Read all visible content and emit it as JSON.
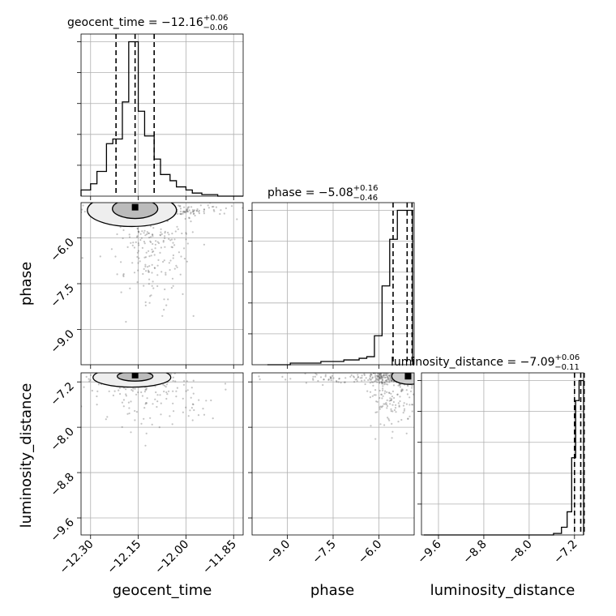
{
  "chart_data": {
    "type": "corner",
    "parameters": [
      "geocent_time",
      "phase",
      "luminosity_distance"
    ],
    "titles": [
      {
        "param": "geocent_time",
        "median": "−12.16",
        "plus": "+0.06",
        "minus": "−0.06"
      },
      {
        "param": "phase",
        "median": "−5.08",
        "plus": "+0.16",
        "minus": "−0.46"
      },
      {
        "param": "luminosity_distance",
        "median": "−7.09",
        "plus": "+0.06",
        "minus": "−0.11"
      }
    ],
    "ranges": {
      "geocent_time": [
        -12.33,
        -11.82
      ],
      "phase": [
        -10.15,
        -4.85
      ],
      "luminosity_distance": [
        -9.9,
        -7.04
      ]
    },
    "ticks": {
      "geocent_time": {
        "values": [
          -12.3,
          -12.15,
          -12.0,
          -11.85
        ],
        "labels": [
          "−12.30",
          "−12.15",
          "−12.00",
          "−11.85"
        ]
      },
      "phase": {
        "values": [
          -9.0,
          -7.5,
          -6.0
        ],
        "labels": [
          "−9.0",
          "−7.5",
          "−6.0"
        ]
      },
      "luminosity_distance": {
        "values": [
          -9.6,
          -8.8,
          -8.0,
          -7.2
        ],
        "labels": [
          "−9.6",
          "−8.8",
          "−8.0",
          "−7.2"
        ]
      }
    },
    "quantiles": {
      "geocent_time": [
        -12.22,
        -12.16,
        -12.1
      ],
      "phase": [
        -5.54,
        -5.08,
        -4.92
      ],
      "luminosity_distance": [
        -7.2,
        -7.09,
        -7.03
      ]
    },
    "hist_geocent_time": {
      "edges": [
        -12.33,
        -12.3,
        -12.28,
        -12.25,
        -12.23,
        -12.2,
        -12.18,
        -12.15,
        -12.13,
        -12.1,
        -12.08,
        -12.05,
        -12.03,
        -12.0,
        -11.98,
        -11.95,
        -11.93,
        -11.9,
        -11.88,
        -11.85,
        -11.82
      ],
      "counts": [
        4,
        8,
        16,
        34,
        37,
        61,
        100,
        55,
        39,
        24,
        14,
        10,
        6,
        4,
        2,
        1,
        1,
        0,
        0,
        0
      ]
    },
    "hist_phase": {
      "edges": [
        -9.65,
        -9.4,
        -9.15,
        -8.9,
        -8.65,
        -8.4,
        -8.15,
        -7.9,
        -7.65,
        -7.4,
        -7.15,
        -6.9,
        -6.65,
        -6.4,
        -6.15,
        -5.9,
        -5.65,
        -5.4,
        -5.15,
        -4.9
      ],
      "counts": [
        0,
        0,
        0,
        1,
        1,
        1,
        1,
        2,
        2,
        2,
        3,
        3,
        4,
        5,
        18,
        49,
        78,
        96,
        96
      ]
    },
    "hist_luminosity_distance": {
      "edges": [
        -9.86,
        -7.57,
        -7.43,
        -7.33,
        -7.25,
        -7.18,
        -7.12,
        -7.06,
        -7.04
      ],
      "counts": [
        0,
        1,
        5,
        15,
        50,
        87,
        100,
        100
      ]
    },
    "xlabel_geocent_time": "geocent_time",
    "xlabel_phase": "phase",
    "xlabel_luminosity_distance": "luminosity_distance",
    "ylabel_phase": "phase",
    "ylabel_luminosity_distance": "luminosity_distance",
    "grid": true,
    "colors": {
      "line": "#000000",
      "scatter": "#555555",
      "grid": "#b0b0b0"
    }
  }
}
